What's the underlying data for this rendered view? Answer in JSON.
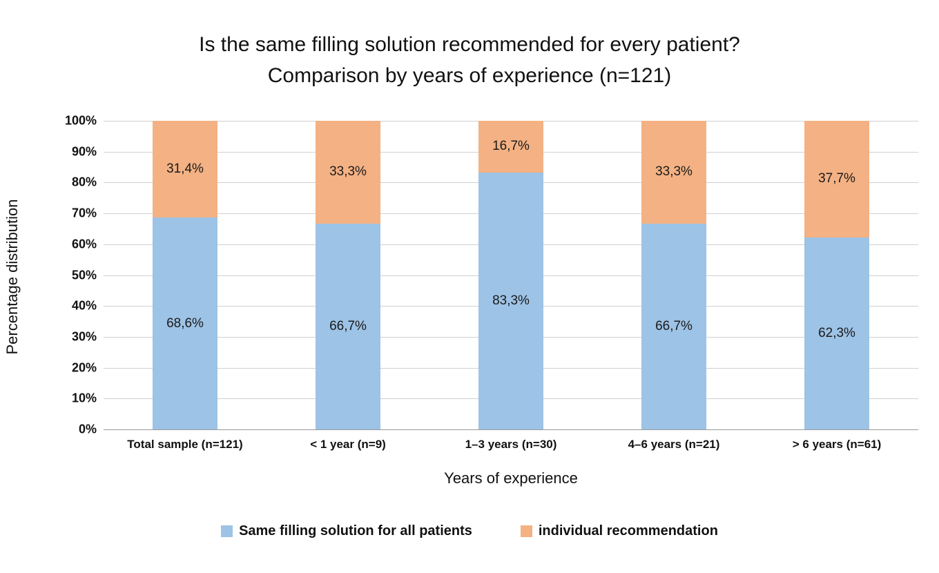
{
  "chart_data": {
    "type": "bar",
    "stacked": true,
    "title": "Is the same filling solution recommended for every patient? Comparison by years of experience (n=121)",
    "title_line1": "Is the same filling solution recommended for every patient?",
    "title_line2": "Comparison by years of experience (n=121)",
    "categories": [
      "Total sample (n=121)",
      "< 1 year (n=9)",
      "1–3 years (n=30)",
      "4–6 years (n=21)",
      "> 6 years (n=61)"
    ],
    "series": [
      {
        "name": "Same filling solution for all patients",
        "color": "#9DC3E6",
        "values": [
          68.6,
          66.7,
          83.3,
          66.7,
          62.3
        ],
        "labels": [
          "68,6%",
          "66,7%",
          "83,3%",
          "66,7%",
          "62,3%"
        ]
      },
      {
        "name": "individual recommendation",
        "color": "#F4B183",
        "values": [
          31.4,
          33.3,
          16.7,
          33.3,
          37.7
        ],
        "labels": [
          "31,4%",
          "33,3%",
          "16,7%",
          "33,3%",
          "37,7%"
        ]
      }
    ],
    "xlabel": "Years of experience",
    "ylabel": "Percentage distribution",
    "ylim": [
      0,
      100
    ],
    "ytick_step": 10,
    "ytick_labels": [
      "0%",
      "10%",
      "20%",
      "30%",
      "40%",
      "50%",
      "60%",
      "70%",
      "80%",
      "90%",
      "100%"
    ],
    "grid": true,
    "legend_position": "bottom",
    "colors": {
      "background": "#FFFFFF",
      "gridline": "#D0D0D0",
      "axis": "#9A9A9A"
    }
  }
}
